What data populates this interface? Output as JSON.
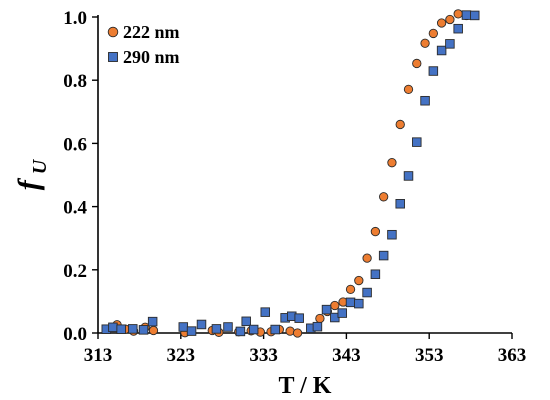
{
  "chart_data": {
    "type": "scatter",
    "title": "",
    "xlabel": "T / K",
    "ylabel_main": "f",
    "ylabel_sub": "U",
    "xlim": [
      313,
      363
    ],
    "ylim": [
      0.0,
      1.0
    ],
    "xticks": [
      "313",
      "323",
      "333",
      "343",
      "353",
      "363"
    ],
    "yticks": [
      "0.0",
      "0.2",
      "0.4",
      "0.6",
      "0.8",
      "1.0"
    ],
    "grid": false,
    "legend_position": "top-left",
    "series": [
      {
        "name": "222 nm",
        "marker": "circle",
        "color": "#ED7D31",
        "x": [
          315.3,
          316.3,
          317.3,
          318.7,
          319.7,
          323.5,
          326.8,
          327.6,
          330.0,
          331.5,
          332.6,
          333.9,
          334.9,
          336.2,
          337.1,
          339.8,
          340.7,
          341.6,
          342.6,
          343.5,
          344.5,
          345.5,
          346.5,
          347.5,
          348.5,
          349.5,
          350.5,
          351.5,
          352.5,
          353.5,
          354.5,
          355.5,
          356.5,
          357.5
        ],
        "y": [
          0.026,
          0.012,
          0.006,
          0.018,
          0.008,
          0.001,
          0.008,
          0.002,
          0.004,
          0.007,
          0.003,
          0.004,
          0.011,
          0.006,
          0.0,
          0.046,
          0.068,
          0.087,
          0.098,
          0.138,
          0.166,
          0.237,
          0.321,
          0.431,
          0.539,
          0.66,
          0.771,
          0.853,
          0.917,
          0.948,
          0.981,
          0.992,
          1.01,
          1.005
        ],
        "legend": "222 nm"
      },
      {
        "name": "290 nm",
        "marker": "square",
        "color": "#4472C4",
        "x": [
          314.0,
          314.8,
          315.8,
          317.2,
          318.5,
          319.6,
          323.3,
          324.3,
          325.5,
          327.3,
          328.7,
          330.2,
          330.9,
          331.8,
          333.2,
          334.4,
          335.6,
          336.4,
          337.3,
          338.7,
          339.5,
          340.6,
          341.6,
          342.5,
          343.5,
          344.5,
          345.5,
          346.5,
          347.5,
          348.5,
          349.5,
          350.5,
          351.5,
          352.5,
          353.5,
          354.5,
          355.5,
          356.5,
          357.5,
          358.5
        ],
        "y": [
          0.012,
          0.018,
          0.012,
          0.013,
          0.01,
          0.036,
          0.019,
          0.006,
          0.027,
          0.013,
          0.019,
          0.005,
          0.037,
          0.011,
          0.066,
          0.011,
          0.048,
          0.053,
          0.047,
          0.015,
          0.02,
          0.074,
          0.049,
          0.063,
          0.097,
          0.093,
          0.128,
          0.186,
          0.245,
          0.311,
          0.409,
          0.497,
          0.604,
          0.735,
          0.829,
          0.894,
          0.915,
          0.963,
          1.006,
          1.005
        ],
        "legend": "290 nm"
      }
    ]
  }
}
